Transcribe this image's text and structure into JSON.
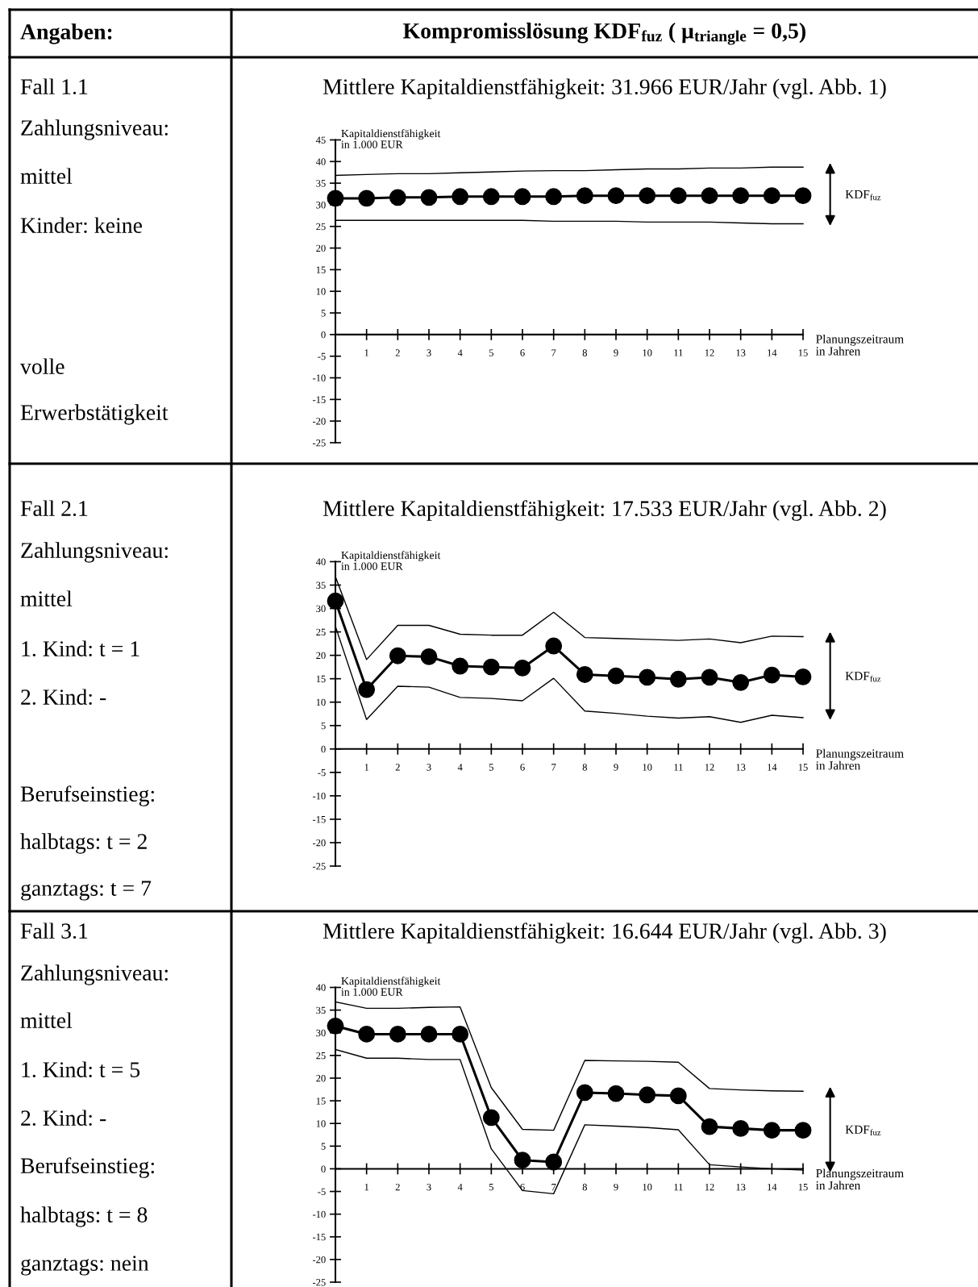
{
  "chart_data": [
    {
      "type": "line",
      "title": "Kompromisslösung KDF$_{fuz}$ ( μ$_{triangle}$ = 0,5)",
      "subtitle": "Mittlere Kapitaldienstfähigkeit: 31.966 EUR/Jahr (vgl. Abb. 1)",
      "xlabel": "Planungszeitraum\nin Jahren",
      "ylabel": "Kapitaldienstfähigkeit\nin 1.000 EUR",
      "x": [
        0,
        1,
        2,
        3,
        4,
        5,
        6,
        7,
        8,
        9,
        10,
        11,
        12,
        13,
        14,
        15
      ],
      "series": [
        {
          "color": "#000000",
          "marker": "none",
          "values": [
            36.8,
            37.0,
            37.2,
            37.2,
            37.4,
            37.6,
            37.8,
            37.9,
            37.9,
            38.1,
            38.3,
            38.3,
            38.5,
            38.5,
            38.7,
            38.7
          ]
        },
        {
          "color": "#000000",
          "marker": "circle",
          "values": [
            31.5,
            31.5,
            31.7,
            31.7,
            31.9,
            31.9,
            31.9,
            31.9,
            32.1,
            32.1,
            32.1,
            32.1,
            32.1,
            32.1,
            32.1,
            32.1
          ]
        },
        {
          "color": "#000000",
          "marker": "none",
          "values": [
            26.4,
            26.4,
            26.4,
            26.4,
            26.4,
            26.4,
            26.4,
            26.2,
            26.2,
            26.2,
            26.0,
            26.0,
            26.0,
            25.8,
            25.6,
            25.6
          ]
        }
      ],
      "xlim": [
        0,
        15
      ],
      "ylim": [
        -25,
        45
      ],
      "xticks": [
        1,
        2,
        3,
        4,
        5,
        6,
        7,
        8,
        9,
        10,
        11,
        12,
        13,
        14,
        15
      ],
      "yticks": [
        -25,
        -20,
        -15,
        -10,
        -5,
        0,
        5,
        10,
        15,
        20,
        25,
        30,
        35,
        40,
        45
      ],
      "grid": false,
      "legend": false,
      "annotations": [
        "Angaben:",
        "Fall 1.1",
        "Zahlungsniveau:",
        "mittel",
        "Kinder: keine",
        "volle",
        "Erwerbstätigkeit",
        "KDF$_{fuz}$"
      ]
    },
    {
      "type": "line",
      "title": "Mittlere Kapitaldienstfähigkeit: 17.533 EUR/Jahr (vgl. Abb. 2)",
      "xlabel": "Planungszeitraum\nin Jahren",
      "ylabel": "Kapitaldienstfähigkeit\nin 1.000 EUR",
      "x": [
        0,
        1,
        2,
        3,
        4,
        5,
        6,
        7,
        8,
        9,
        10,
        11,
        12,
        13,
        14,
        15
      ],
      "series": [
        {
          "color": "#000000",
          "marker": "none",
          "values": [
            36.8,
            19.1,
            26.4,
            26.4,
            24.5,
            24.3,
            24.3,
            29.2,
            23.8,
            23.6,
            23.4,
            23.2,
            23.5,
            22.7,
            24.1,
            24.0
          ]
        },
        {
          "color": "#000000",
          "marker": "circle",
          "values": [
            31.6,
            12.7,
            19.9,
            19.7,
            17.7,
            17.5,
            17.3,
            22.0,
            15.9,
            15.6,
            15.3,
            14.9,
            15.3,
            14.2,
            15.8,
            15.4
          ]
        },
        {
          "color": "#000000",
          "marker": "none",
          "values": [
            26.2,
            6.3,
            13.4,
            13.2,
            11.0,
            10.8,
            10.3,
            15.1,
            8.1,
            7.6,
            7.0,
            6.6,
            6.9,
            5.7,
            7.2,
            6.7
          ]
        }
      ],
      "xlim": [
        0,
        15
      ],
      "ylim": [
        -25,
        40
      ],
      "xticks": [
        1,
        2,
        3,
        4,
        5,
        6,
        7,
        8,
        9,
        10,
        11,
        12,
        13,
        14,
        15
      ],
      "yticks": [
        -25,
        -20,
        -15,
        -10,
        -5,
        0,
        5,
        10,
        15,
        20,
        25,
        30,
        35,
        40
      ],
      "grid": false,
      "legend": false,
      "annotations": [
        "Fall 2.1",
        "Zahlungsniveau:",
        "mittel",
        "1. Kind: t = 1",
        "2. Kind: -",
        "Berufseinstieg:",
        "halbtags: t = 2",
        "ganztags: t = 7",
        "KDF$_{fuz}$"
      ]
    },
    {
      "type": "line",
      "title": "Mittlere Kapitaldienstfähigkeit: 16.644 EUR/Jahr (vgl. Abb. 3)",
      "xlabel": "Planungszeitraum\nin Jahren",
      "ylabel": "Kapitaldienstfähigkeit\nin 1.000 EUR",
      "x": [
        0,
        1,
        2,
        3,
        4,
        5,
        6,
        7,
        8,
        9,
        10,
        11,
        12,
        13,
        14,
        15
      ],
      "series": [
        {
          "color": "#000000",
          "marker": "none",
          "values": [
            36.8,
            35.4,
            35.4,
            35.6,
            35.7,
            17.9,
            8.7,
            8.5,
            23.9,
            23.8,
            23.7,
            23.5,
            17.7,
            17.4,
            17.2,
            17.1
          ]
        },
        {
          "color": "#000000",
          "marker": "circle",
          "values": [
            31.5,
            29.7,
            29.7,
            29.7,
            29.7,
            11.3,
            1.9,
            1.5,
            16.8,
            16.6,
            16.3,
            16.1,
            9.3,
            8.9,
            8.5,
            8.5
          ]
        },
        {
          "color": "#000000",
          "marker": "none",
          "values": [
            26.3,
            24.4,
            24.4,
            24.1,
            24.1,
            4.4,
            -4.8,
            -5.5,
            9.7,
            9.4,
            9.1,
            8.6,
            0.9,
            0.4,
            0.0,
            -0.3
          ]
        }
      ],
      "xlim": [
        0,
        15
      ],
      "ylim": [
        -25,
        40
      ],
      "xticks": [
        1,
        2,
        3,
        4,
        5,
        6,
        7,
        8,
        9,
        10,
        11,
        12,
        13,
        14,
        15
      ],
      "yticks": [
        -25,
        -20,
        -15,
        -10,
        -5,
        0,
        5,
        10,
        15,
        20,
        25,
        30,
        35,
        40
      ],
      "grid": false,
      "legend": false,
      "annotations": [
        "Fall 3.1",
        "Zahlungsniveau:",
        "mittel",
        "1. Kind: t = 5",
        "2. Kind: -",
        "Berufseinstieg:",
        "halbtags: t = 8",
        "ganztags: nein",
        "KDF$_{fuz}$"
      ]
    }
  ]
}
